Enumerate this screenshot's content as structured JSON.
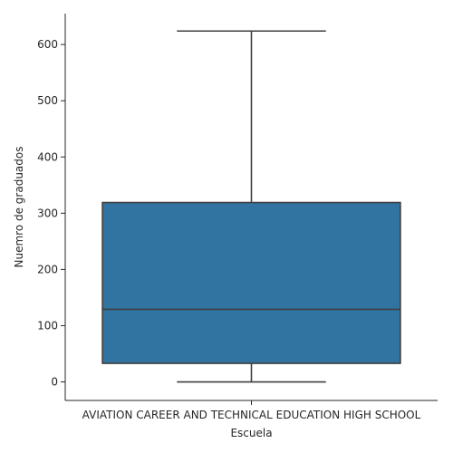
{
  "chart_data": {
    "type": "box",
    "xlabel": "Escuela",
    "ylabel": "Nuemro de graduados",
    "categories": [
      "AVIATION CAREER AND TECHNICAL EDUCATION HIGH SCHOOL"
    ],
    "boxes": [
      {
        "category": "AVIATION CAREER AND TECHNICAL EDUCATION HIGH SCHOOL",
        "whisker_low": 0,
        "q1": 33,
        "median": 129,
        "q3": 319,
        "whisker_high": 624
      }
    ],
    "yticks": [
      0,
      100,
      200,
      300,
      400,
      500,
      600
    ],
    "ylim": [
      -33,
      655
    ],
    "box_color": "#3274a1",
    "line_color": "#3f3f3f",
    "grid": false,
    "legend": "none"
  }
}
